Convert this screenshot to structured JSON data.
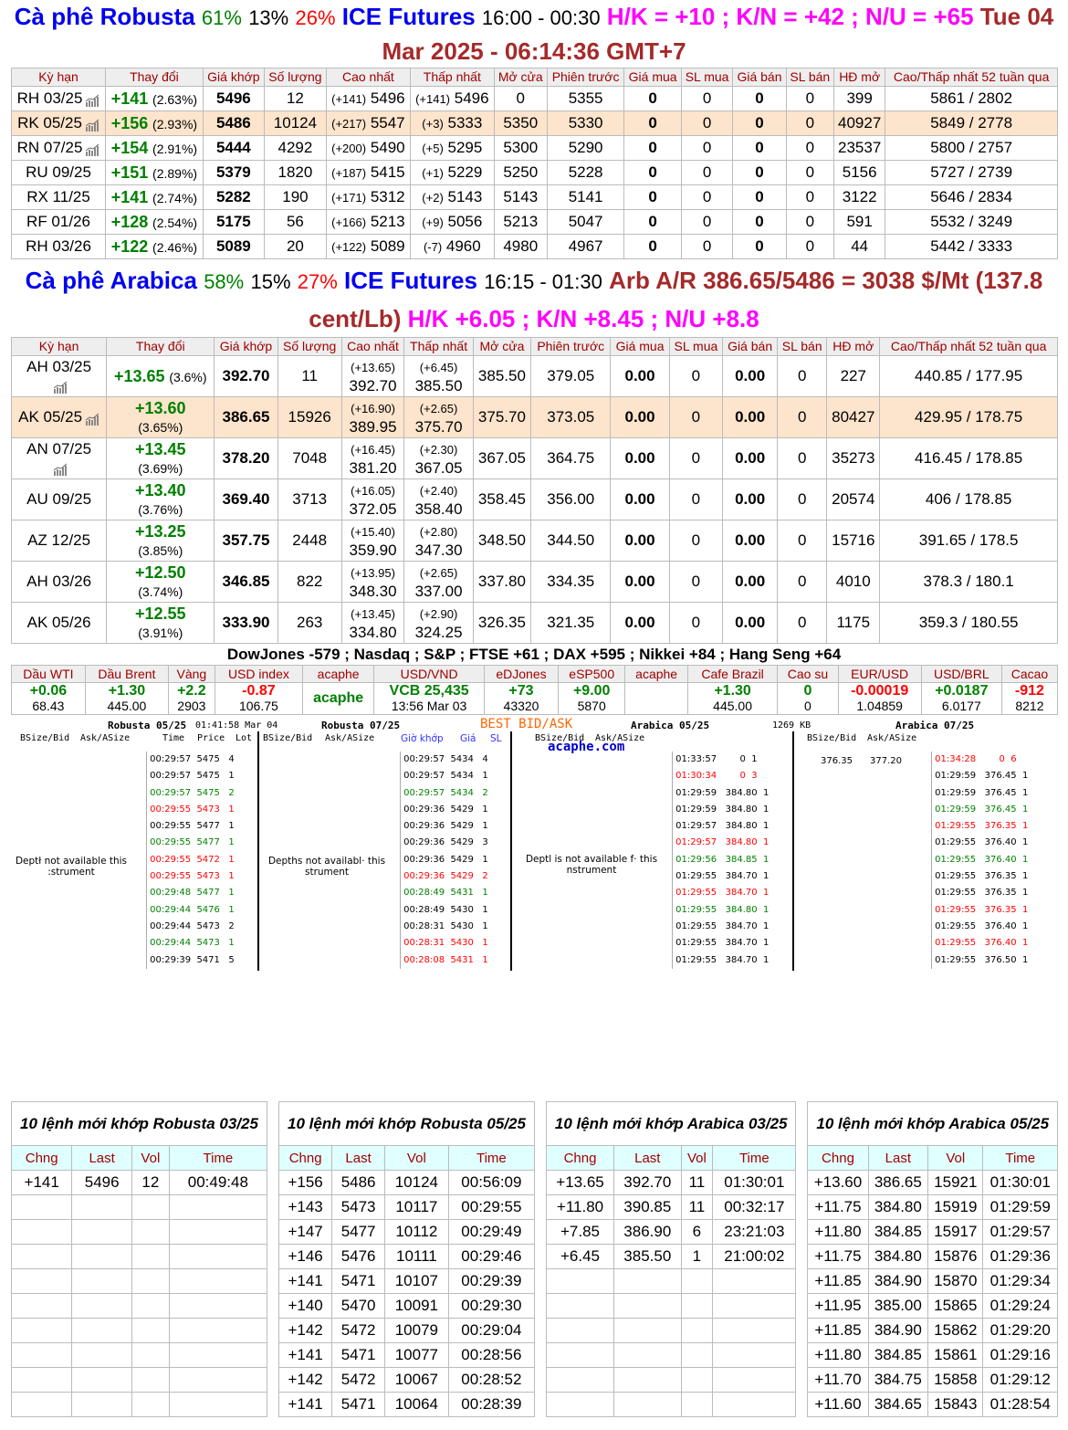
{
  "robusta_header": {
    "name": "Cà phê Robusta",
    "pct_up": "61%",
    "pct_flat": "13%",
    "pct_down": "26%",
    "exchange": "ICE Futures",
    "hours": "16:00 - 00:30",
    "spreads": "H/K = +10 ; K/N = +42 ; N/U = +65",
    "datetime": "Tue 04 Mar 2025 - 06:14:36 GMT+7"
  },
  "robusta_table": {
    "columns": [
      "Kỳ hạn",
      "Thay đổi",
      "Giá khớp",
      "Số lượng",
      "Cao nhất",
      "Thấp nhất",
      "Mở cửa",
      "Phiên trước",
      "Giá mua",
      "SL mua",
      "Giá bán",
      "SL bán",
      "HĐ mở",
      "Cao/Thấp nhất 52 tuần qua"
    ],
    "rows": [
      {
        "term": "RH 03/25",
        "chart": true,
        "chg": "+141",
        "pct": "(2.63%)",
        "last": "5496",
        "vol": "12",
        "high_chg": "(+141)",
        "high": "5496",
        "low_chg": "(+141)",
        "low": "5496",
        "open": "0",
        "prev": "5355",
        "bid": "0",
        "bid_sz": "0",
        "ask": "0",
        "ask_sz": "0",
        "oi": "399",
        "w52": "5861 / 2802"
      },
      {
        "term": "RK 05/25",
        "chart": true,
        "chg": "+156",
        "pct": "(2.93%)",
        "last": "5486",
        "vol": "10124",
        "high_chg": "(+217)",
        "high": "5547",
        "low_chg": "(+3)",
        "low": "5333",
        "open": "5350",
        "prev": "5330",
        "bid": "0",
        "bid_sz": "0",
        "ask": "0",
        "ask_sz": "0",
        "oi": "40927",
        "w52": "5849 / 2778",
        "highlight": true
      },
      {
        "term": "RN 07/25",
        "chart": true,
        "chg": "+154",
        "pct": "(2.91%)",
        "last": "5444",
        "vol": "4292",
        "high_chg": "(+200)",
        "high": "5490",
        "low_chg": "(+5)",
        "low": "5295",
        "open": "5300",
        "prev": "5290",
        "bid": "0",
        "bid_sz": "0",
        "ask": "0",
        "ask_sz": "0",
        "oi": "23537",
        "w52": "5800 / 2757"
      },
      {
        "term": "RU 09/25",
        "chart": false,
        "chg": "+151",
        "pct": "(2.89%)",
        "last": "5379",
        "vol": "1820",
        "high_chg": "(+187)",
        "high": "5415",
        "low_chg": "(+1)",
        "low": "5229",
        "open": "5250",
        "prev": "5228",
        "bid": "0",
        "bid_sz": "0",
        "ask": "0",
        "ask_sz": "0",
        "oi": "5156",
        "w52": "5727 / 2739"
      },
      {
        "term": "RX 11/25",
        "chart": false,
        "chg": "+141",
        "pct": "(2.74%)",
        "last": "5282",
        "vol": "190",
        "high_chg": "(+171)",
        "high": "5312",
        "low_chg": "(+2)",
        "low": "5143",
        "open": "5143",
        "prev": "5141",
        "bid": "0",
        "bid_sz": "0",
        "ask": "0",
        "ask_sz": "0",
        "oi": "3122",
        "w52": "5646 / 2834"
      },
      {
        "term": "RF 01/26",
        "chart": false,
        "chg": "+128",
        "pct": "(2.54%)",
        "last": "5175",
        "vol": "56",
        "high_chg": "(+166)",
        "high": "5213",
        "low_chg": "(+9)",
        "low": "5056",
        "open": "5213",
        "prev": "5047",
        "bid": "0",
        "bid_sz": "0",
        "ask": "0",
        "ask_sz": "0",
        "oi": "591",
        "w52": "5532 / 3249"
      },
      {
        "term": "RH 03/26",
        "chart": false,
        "chg": "+122",
        "pct": "(2.46%)",
        "last": "5089",
        "vol": "20",
        "high_chg": "(+122)",
        "high": "5089",
        "low_chg": "(-7)",
        "low": "4960",
        "open": "4980",
        "prev": "4967",
        "bid": "0",
        "bid_sz": "0",
        "ask": "0",
        "ask_sz": "0",
        "oi": "44",
        "w52": "5442 / 3333"
      }
    ]
  },
  "arabica_header": {
    "name": "Cà phê Arabica",
    "pct_up": "58%",
    "pct_flat": "15%",
    "pct_down": "27%",
    "exchange": "ICE Futures",
    "hours": "16:15 - 01:30",
    "arb": "Arb A/R 386.65/5486 = 3038 $/Mt (137.8 cent/Lb)",
    "spreads": "H/K +6.05 ; K/N +8.45 ; N/U +8.8"
  },
  "arabica_table": {
    "columns": [
      "Kỳ hạn",
      "Thay đổi",
      "Giá khớp",
      "Số lượng",
      "Cao nhất",
      "Thấp nhất",
      "Mở cửa",
      "Phiên trước",
      "Giá mua",
      "SL mua",
      "Giá bán",
      "SL bán",
      "HĐ mở",
      "Cao/Thấp nhất 52 tuần qua"
    ],
    "rows": [
      {
        "term": "AH 03/25",
        "chart": true,
        "chg": "+13.65",
        "pct": "(3.6%)",
        "last": "392.70",
        "vol": "11",
        "high_chg": "(+13.65)",
        "high": "392.70",
        "low_chg": "(+6.45)",
        "low": "385.50",
        "open": "385.50",
        "prev": "379.05",
        "bid": "0.00",
        "bid_sz": "0",
        "ask": "0.00",
        "ask_sz": "0",
        "oi": "227",
        "w52": "440.85 / 177.95"
      },
      {
        "term": "AK 05/25",
        "chart": true,
        "chg": "+13.60",
        "pct": "(3.65%)",
        "last": "386.65",
        "vol": "15926",
        "high_chg": "(+16.90)",
        "high": "389.95",
        "low_chg": "(+2.65)",
        "low": "375.70",
        "open": "375.70",
        "prev": "373.05",
        "bid": "0.00",
        "bid_sz": "0",
        "ask": "0.00",
        "ask_sz": "0",
        "oi": "80427",
        "w52": "429.95 / 178.75",
        "highlight": true
      },
      {
        "term": "AN 07/25",
        "chart": true,
        "chg": "+13.45",
        "pct": "(3.69%)",
        "last": "378.20",
        "vol": "7048",
        "high_chg": "(+16.45)",
        "high": "381.20",
        "low_chg": "(+2.30)",
        "low": "367.05",
        "open": "367.05",
        "prev": "364.75",
        "bid": "0.00",
        "bid_sz": "0",
        "ask": "0.00",
        "ask_sz": "0",
        "oi": "35273",
        "w52": "416.45 / 178.85"
      },
      {
        "term": "AU 09/25",
        "chart": false,
        "chg": "+13.40",
        "pct": "(3.76%)",
        "last": "369.40",
        "vol": "3713",
        "high_chg": "(+16.05)",
        "high": "372.05",
        "low_chg": "(+2.40)",
        "low": "358.40",
        "open": "358.45",
        "prev": "356.00",
        "bid": "0.00",
        "bid_sz": "0",
        "ask": "0.00",
        "ask_sz": "0",
        "oi": "20574",
        "w52": "406 / 178.85"
      },
      {
        "term": "AZ 12/25",
        "chart": false,
        "chg": "+13.25",
        "pct": "(3.85%)",
        "last": "357.75",
        "vol": "2448",
        "high_chg": "(+15.40)",
        "high": "359.90",
        "low_chg": "(+2.80)",
        "low": "347.30",
        "open": "348.50",
        "prev": "344.50",
        "bid": "0.00",
        "bid_sz": "0",
        "ask": "0.00",
        "ask_sz": "0",
        "oi": "15716",
        "w52": "391.65 / 178.5"
      },
      {
        "term": "AH 03/26",
        "chart": false,
        "chg": "+12.50",
        "pct": "(3.74%)",
        "last": "346.85",
        "vol": "822",
        "high_chg": "(+13.95)",
        "high": "348.30",
        "low_chg": "(+2.65)",
        "low": "337.00",
        "open": "337.80",
        "prev": "334.35",
        "bid": "0.00",
        "bid_sz": "0",
        "ask": "0.00",
        "ask_sz": "0",
        "oi": "4010",
        "w52": "378.3 / 180.1"
      },
      {
        "term": "AK 05/26",
        "chart": false,
        "chg": "+12.55",
        "pct": "(3.91%)",
        "last": "333.90",
        "vol": "263",
        "high_chg": "(+13.45)",
        "high": "334.80",
        "low_chg": "(+2.90)",
        "low": "324.25",
        "open": "326.35",
        "prev": "321.35",
        "bid": "0.00",
        "bid_sz": "0",
        "ask": "0.00",
        "ask_sz": "0",
        "oi": "1175",
        "w52": "359.3 / 180.55"
      }
    ]
  },
  "indices": "DowJones -579 ; Nasdaq ; S&P ; FTSE +61 ; DAX +595 ; Nikkei +84 ; Hang Seng +64",
  "markets": [
    {
      "label": "Dầu WTI",
      "chg": "+0.06",
      "val": "68.43",
      "color": "#008000"
    },
    {
      "label": "Dầu Brent",
      "chg": "+1.30",
      "val": "445.00",
      "color": "#008000"
    },
    {
      "label": "Vàng",
      "chg": "+2.2",
      "val": "2903",
      "color": "#008000"
    },
    {
      "label": "USD index",
      "chg": "-0.87",
      "val": "106.75",
      "color": "#ff0000"
    },
    {
      "label": "acaphe",
      "chg": "acaphe",
      "val": "",
      "color": "#008000"
    },
    {
      "label": "USD/VND",
      "chg": "VCB 25,435",
      "val": "13:56 Mar 03",
      "color": "#008000"
    },
    {
      "label": "eDJones",
      "chg": "+73",
      "val": "43320",
      "color": "#008000"
    },
    {
      "label": "eSP500",
      "chg": "+9.00",
      "val": "5870",
      "color": "#008000"
    },
    {
      "label": "acaphe",
      "chg": "",
      "val": "",
      "color": "#008000"
    },
    {
      "label": "Cafe Brazil",
      "chg": "+1.30",
      "val": "445.00",
      "color": "#008000"
    },
    {
      "label": "Cao su",
      "chg": "0",
      "val": "0",
      "color": "#008000"
    },
    {
      "label": "EUR/USD",
      "chg": "-0.00019",
      "val": "1.04859",
      "color": "#ff0000"
    },
    {
      "label": "USD/BRL",
      "chg": "+0.0187",
      "val": "6.0177",
      "color": "#008000"
    },
    {
      "label": "Cacao",
      "chg": "-912",
      "val": "8212",
      "color": "#ff0000"
    }
  ],
  "bidask": {
    "title": "BEST BID/ASK",
    "site": "acaphe.com",
    "clock": "01:41:58 Mar 04",
    "size": "1269 KB",
    "bid_hdr": "BSize/Bid",
    "ask_hdr": "Ask/ASize",
    "panels": [
      {
        "title": "Robusta 05/25",
        "trade_hdr": [
          "Time",
          "Price",
          "Lot"
        ],
        "depth_msg": "Deptł not available  this\n:strument",
        "trades": [
          [
            "00:29:57",
            "5475",
            "4",
            "k"
          ],
          [
            "00:29:57",
            "5475",
            "1",
            "k"
          ],
          [
            "00:29:57",
            "5475",
            "2",
            "g"
          ],
          [
            "00:29:55",
            "5473",
            "1",
            "r"
          ],
          [
            "00:29:55",
            "5477",
            "1",
            "k"
          ],
          [
            "00:29:55",
            "5477",
            "1",
            "g"
          ],
          [
            "00:29:55",
            "5472",
            "1",
            "r"
          ],
          [
            "00:29:55",
            "5473",
            "1",
            "r"
          ],
          [
            "00:29:48",
            "5477",
            "1",
            "g"
          ],
          [
            "00:29:44",
            "5476",
            "1",
            "g"
          ],
          [
            "00:29:44",
            "5473",
            "2",
            "k"
          ],
          [
            "00:29:44",
            "5473",
            "1",
            "g"
          ],
          [
            "00:29:39",
            "5471",
            "5",
            "k"
          ]
        ]
      },
      {
        "title": "Robusta 07/25",
        "trade_hdr": [
          "Giờ khớp",
          "Giá",
          "SL"
        ],
        "depth_msg": "Depths not availabl· this\nstrument",
        "trades": [
          [
            "00:29:57",
            "5434",
            "4",
            "k"
          ],
          [
            "00:29:57",
            "5434",
            "1",
            "k"
          ],
          [
            "00:29:57",
            "5434",
            "2",
            "g"
          ],
          [
            "00:29:36",
            "5429",
            "1",
            "k"
          ],
          [
            "00:29:36",
            "5429",
            "1",
            "k"
          ],
          [
            "00:29:36",
            "5429",
            "3",
            "k"
          ],
          [
            "00:29:36",
            "5429",
            "1",
            "k"
          ],
          [
            "00:29:36",
            "5429",
            "2",
            "r"
          ],
          [
            "00:28:49",
            "5431",
            "1",
            "g"
          ],
          [
            "00:28:49",
            "5430",
            "1",
            "k"
          ],
          [
            "00:28:31",
            "5430",
            "1",
            "k"
          ],
          [
            "00:28:31",
            "5430",
            "1",
            "r"
          ],
          [
            "00:28:08",
            "5431",
            "1",
            "r"
          ]
        ]
      },
      {
        "title": "Arabica 05/25",
        "depth_msg": "Deptl is not available f·  this\nnstrument",
        "trades": [
          [
            "01:33:57",
            "0",
            "1",
            "k"
          ],
          [
            "01:30:34",
            "0",
            "3",
            "r"
          ],
          [
            "01:29:59",
            "384.80",
            "1",
            "k"
          ],
          [
            "01:29:59",
            "384.80",
            "1",
            "k"
          ],
          [
            "01:29:57",
            "384.80",
            "1",
            "k"
          ],
          [
            "01:29:57",
            "384.80",
            "1",
            "r"
          ],
          [
            "01:29:56",
            "384.85",
            "1",
            "g"
          ],
          [
            "01:29:55",
            "384.70",
            "1",
            "k"
          ],
          [
            "01:29:55",
            "384.70",
            "1",
            "r"
          ],
          [
            "01:29:55",
            "384.80",
            "1",
            "g"
          ],
          [
            "01:29:55",
            "384.70",
            "1",
            "k"
          ],
          [
            "01:29:55",
            "384.70",
            "1",
            "k"
          ],
          [
            "01:29:55",
            "384.70",
            "1",
            "k"
          ]
        ]
      },
      {
        "title": "Arabica 07/25",
        "bid": "376.35",
        "ask": "377.20",
        "trades": [
          [
            "01:34:28",
            "0",
            "6",
            "r"
          ],
          [
            "01:29:59",
            "376.45",
            "1",
            "k"
          ],
          [
            "01:29:59",
            "376.45",
            "1",
            "k"
          ],
          [
            "01:29:59",
            "376.45",
            "1",
            "g"
          ],
          [
            "01:29:55",
            "376.35",
            "1",
            "r"
          ],
          [
            "01:29:55",
            "376.40",
            "1",
            "k"
          ],
          [
            "01:29:55",
            "376.40",
            "1",
            "g"
          ],
          [
            "01:29:55",
            "376.35",
            "1",
            "k"
          ],
          [
            "01:29:55",
            "376.35",
            "1",
            "k"
          ],
          [
            "01:29:55",
            "376.35",
            "1",
            "r"
          ],
          [
            "01:29:55",
            "376.40",
            "1",
            "k"
          ],
          [
            "01:29:55",
            "376.40",
            "1",
            "r"
          ],
          [
            "01:29:55",
            "376.50",
            "1",
            "k"
          ]
        ]
      }
    ]
  },
  "recent_trades": {
    "columns": [
      "Chng",
      "Last",
      "Vol",
      "Time"
    ],
    "tables": [
      {
        "title": "10 lệnh mới khớp Robusta 03/25",
        "rows": [
          [
            "+141",
            "5496",
            "12",
            "00:49:48"
          ]
        ]
      },
      {
        "title": "10 lệnh mới khớp Robusta 05/25",
        "rows": [
          [
            "+156",
            "5486",
            "10124",
            "00:56:09"
          ],
          [
            "+143",
            "5473",
            "10117",
            "00:29:55"
          ],
          [
            "+147",
            "5477",
            "10112",
            "00:29:49"
          ],
          [
            "+146",
            "5476",
            "10111",
            "00:29:46"
          ],
          [
            "+141",
            "5471",
            "10107",
            "00:29:39"
          ],
          [
            "+140",
            "5470",
            "10091",
            "00:29:30"
          ],
          [
            "+142",
            "5472",
            "10079",
            "00:29:04"
          ],
          [
            "+141",
            "5471",
            "10077",
            "00:28:56"
          ],
          [
            "+142",
            "5472",
            "10067",
            "00:28:52"
          ],
          [
            "+141",
            "5471",
            "10064",
            "00:28:39"
          ]
        ]
      },
      {
        "title": "10 lệnh mới khớp Arabica 03/25",
        "rows": [
          [
            "+13.65",
            "392.70",
            "11",
            "01:30:01"
          ],
          [
            "+11.80",
            "390.85",
            "11",
            "00:32:17"
          ],
          [
            "+7.85",
            "386.90",
            "6",
            "23:21:03"
          ],
          [
            "+6.45",
            "385.50",
            "1",
            "21:00:02"
          ]
        ]
      },
      {
        "title": "10 lệnh mới khớp Arabica 05/25",
        "rows": [
          [
            "+13.60",
            "386.65",
            "15921",
            "01:30:01"
          ],
          [
            "+11.75",
            "384.80",
            "15919",
            "01:29:59"
          ],
          [
            "+11.80",
            "384.85",
            "15917",
            "01:29:57"
          ],
          [
            "+11.75",
            "384.80",
            "15876",
            "01:29:36"
          ],
          [
            "+11.85",
            "384.90",
            "15870",
            "01:29:34"
          ],
          [
            "+11.95",
            "385.00",
            "15865",
            "01:29:24"
          ],
          [
            "+11.85",
            "384.90",
            "15862",
            "01:29:20"
          ],
          [
            "+11.80",
            "384.85",
            "15861",
            "01:29:16"
          ],
          [
            "+11.70",
            "384.75",
            "15858",
            "01:29:12"
          ],
          [
            "+11.60",
            "384.65",
            "15843",
            "01:28:54"
          ]
        ]
      }
    ]
  }
}
